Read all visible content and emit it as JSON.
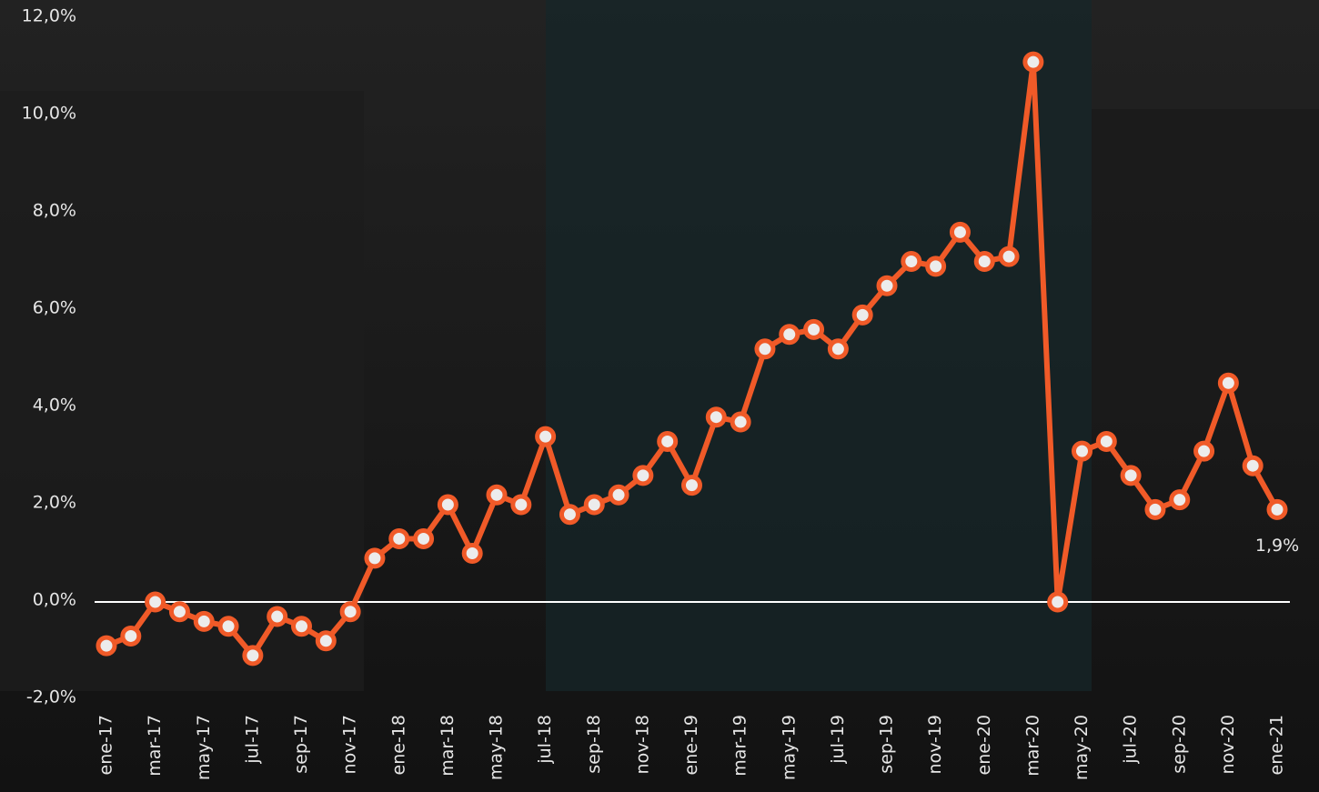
{
  "chart_data": {
    "type": "line",
    "categories": [
      "ene-17",
      null,
      "mar-17",
      null,
      "may-17",
      null,
      "jul-17",
      null,
      "sep-17",
      null,
      "nov-17",
      null,
      "ene-18",
      null,
      "mar-18",
      null,
      "may-18",
      null,
      "jul-18",
      null,
      "sep-18",
      null,
      "nov-18",
      null,
      "ene-19",
      null,
      "mar-19",
      null,
      "may-19",
      null,
      "jul-19",
      null,
      "sep-19",
      null,
      "nov-19",
      null,
      "ene-20",
      null,
      "mar-20",
      null,
      "may-20",
      null,
      "jul-20",
      null,
      "sep-20",
      null,
      "nov-20",
      null,
      "ene-21"
    ],
    "values": [
      -0.9,
      -0.7,
      0.0,
      -0.2,
      -0.4,
      -0.5,
      -1.1,
      -0.3,
      -0.5,
      -0.8,
      -0.2,
      0.9,
      1.3,
      1.3,
      2.0,
      1.0,
      2.2,
      2.0,
      3.4,
      1.8,
      2.0,
      2.2,
      2.6,
      3.3,
      2.4,
      3.8,
      3.7,
      5.2,
      5.5,
      5.6,
      5.2,
      5.9,
      6.5,
      7.0,
      6.9,
      7.6,
      7.0,
      7.1,
      11.1,
      0.0,
      3.1,
      3.3,
      2.6,
      1.9,
      2.1,
      3.1,
      4.5,
      2.8,
      1.9
    ],
    "value_labels": [
      null,
      null,
      null,
      null,
      null,
      null,
      null,
      null,
      null,
      null,
      null,
      null,
      null,
      null,
      null,
      null,
      null,
      null,
      null,
      null,
      null,
      null,
      null,
      null,
      null,
      null,
      null,
      null,
      null,
      null,
      null,
      null,
      null,
      null,
      null,
      null,
      null,
      null,
      null,
      null,
      null,
      null,
      null,
      null,
      null,
      null,
      null,
      null,
      "1,9%"
    ],
    "color": "#f05a28",
    "ylim": [
      -2,
      12
    ],
    "yticks": [
      {
        "value": -2,
        "label": "-2,0%"
      },
      {
        "value": 0,
        "label": "0,0%"
      },
      {
        "value": 2,
        "label": "2,0%"
      },
      {
        "value": 4,
        "label": "4,0%"
      },
      {
        "value": 6,
        "label": "6,0%"
      },
      {
        "value": 8,
        "label": "8,0%"
      },
      {
        "value": 10,
        "label": "10,0%"
      },
      {
        "value": 12,
        "label": "12,0%"
      }
    ],
    "zero_line": true
  }
}
